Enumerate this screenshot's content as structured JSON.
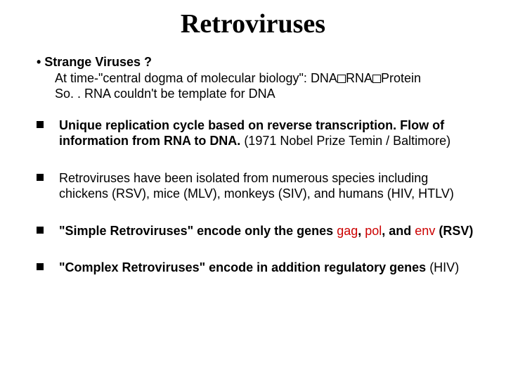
{
  "title": "Retroviruses",
  "bullet1": {
    "lede": "• Strange Viruses ?",
    "line1_a": "At time-\"central dogma of molecular biology\": DNA",
    "line1_b": "RNA",
    "line1_c": "Protein",
    "line2": "So. . RNA couldn't be template for DNA"
  },
  "bullet2": {
    "part_a": "Unique replication cycle based on reverse transcription. Flow of information from RNA to DNA. ",
    "part_b": "(1971 Nobel Prize Temin / Baltimore)"
  },
  "bullet3": "Retroviruses have been isolated from numerous species including chickens (RSV), mice (MLV), monkeys (SIV), and humans (HIV, HTLV)",
  "bullet4": {
    "a": "\"Simple Retroviruses\" encode only the genes ",
    "gag": "gag",
    "c1": ", ",
    "pol": "pol",
    "c2": ", and ",
    "env": "env",
    "tail": " (RSV)"
  },
  "bullet5": {
    "a": "\"Complex Retroviruses\" encode in addition regulatory genes",
    "tail": "   (HIV)"
  },
  "colors": {
    "title": "#000000",
    "text": "#000000",
    "red": "#cc0000",
    "background": "#ffffff"
  },
  "fonts": {
    "title_family": "Times New Roman",
    "title_size_pt": 29,
    "body_family": "Arial",
    "body_size_pt": 14
  }
}
